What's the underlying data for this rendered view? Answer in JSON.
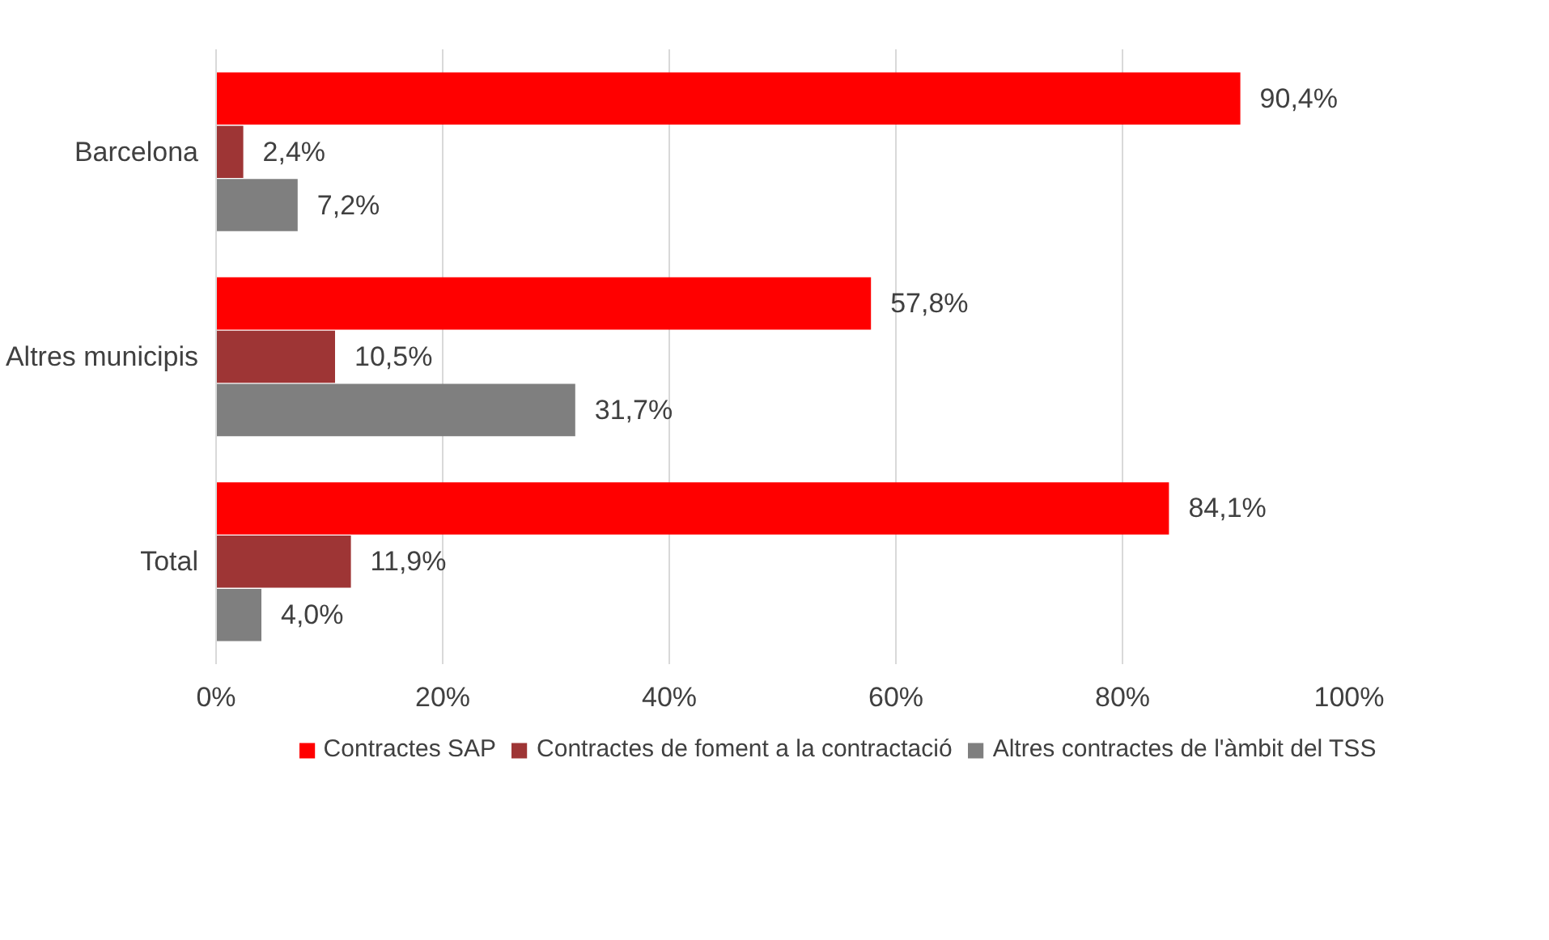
{
  "chart_data": {
    "type": "bar",
    "orientation": "horizontal",
    "categories": [
      "Barcelona",
      "Altres municipis",
      "Total"
    ],
    "series": [
      {
        "name": "Contractes SAP",
        "color": "#ff0000",
        "values": [
          90.4,
          57.8,
          84.1
        ],
        "value_labels": [
          "90,4%",
          "57,8%",
          "84,1%"
        ]
      },
      {
        "name": "Contractes de foment a la contractació",
        "color": "#9e3535",
        "values": [
          2.4,
          10.5,
          11.9
        ],
        "value_labels": [
          "2,4%",
          "10,5%",
          "11,9%"
        ]
      },
      {
        "name": "Altres contractes de l'àmbit del TSS",
        "color": "#7f7f7f",
        "values": [
          7.2,
          31.7,
          4.0
        ],
        "value_labels": [
          "7,2%",
          "31,7%",
          "4,0%"
        ]
      }
    ],
    "xlim": [
      0,
      100
    ],
    "xticks": [
      {
        "value": 0,
        "label": "0%"
      },
      {
        "value": 20,
        "label": "20%"
      },
      {
        "value": 40,
        "label": "40%"
      },
      {
        "value": 60,
        "label": "60%"
      },
      {
        "value": 80,
        "label": "80%"
      },
      {
        "value": 100,
        "label": "100%"
      }
    ],
    "grid": "x",
    "legend": "bottom"
  }
}
